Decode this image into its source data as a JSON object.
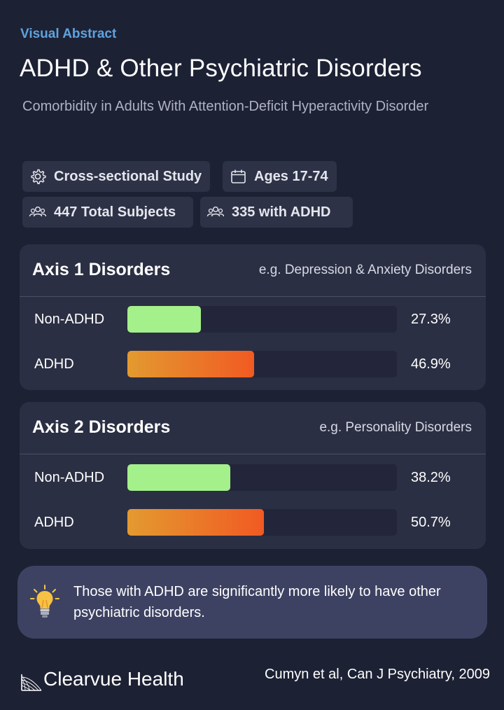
{
  "header": {
    "eyebrow": "Visual Abstract",
    "title": "ADHD & Other Psychiatric Disorders",
    "subtitle": "Comorbidity in Adults With Attention-Deficit Hyperactivity Disorder"
  },
  "chips": [
    {
      "icon": "gear-icon",
      "label": "Cross-sectional Study"
    },
    {
      "icon": "calendar-icon",
      "label": "Ages 17-74"
    },
    {
      "icon": "people-group-icon",
      "label": "447 Total Subjects"
    },
    {
      "icon": "people-group-icon",
      "label": "335 with ADHD"
    }
  ],
  "chart_data": [
    {
      "type": "bar",
      "title": "Axis 1 Disorders",
      "note": "e.g. Depression & Anxiety Disorders",
      "categories": [
        "Non-ADHD",
        "ADHD"
      ],
      "values": [
        27.3,
        46.9
      ],
      "value_labels": [
        "27.3%",
        "46.9%"
      ],
      "ylim": [
        0,
        100
      ],
      "colors": [
        "#a4f08a",
        "#f15a22"
      ]
    },
    {
      "type": "bar",
      "title": "Axis 2 Disorders",
      "note": "e.g. Personality Disorders",
      "categories": [
        "Non-ADHD",
        "ADHD"
      ],
      "values": [
        38.2,
        50.7
      ],
      "value_labels": [
        "38.2%",
        "50.7%"
      ],
      "ylim": [
        0,
        100
      ],
      "colors": [
        "#a4f08a",
        "#f15a22"
      ]
    }
  ],
  "callout": {
    "icon": "lightbulb-icon",
    "text": "Those with ADHD are significantly more likely to have other psychiatric disorders."
  },
  "footer": {
    "logo_text": "Clearvue Health",
    "citation": "Cumyn et al, Can J Psychiatry, 2009"
  },
  "colors": {
    "background": "#1d2134",
    "card": "#2b2f43",
    "accent": "#5fa2dc",
    "non_adhd": "#a4f08a",
    "adhd_start": "#e39a30",
    "adhd_end": "#f15a22"
  }
}
